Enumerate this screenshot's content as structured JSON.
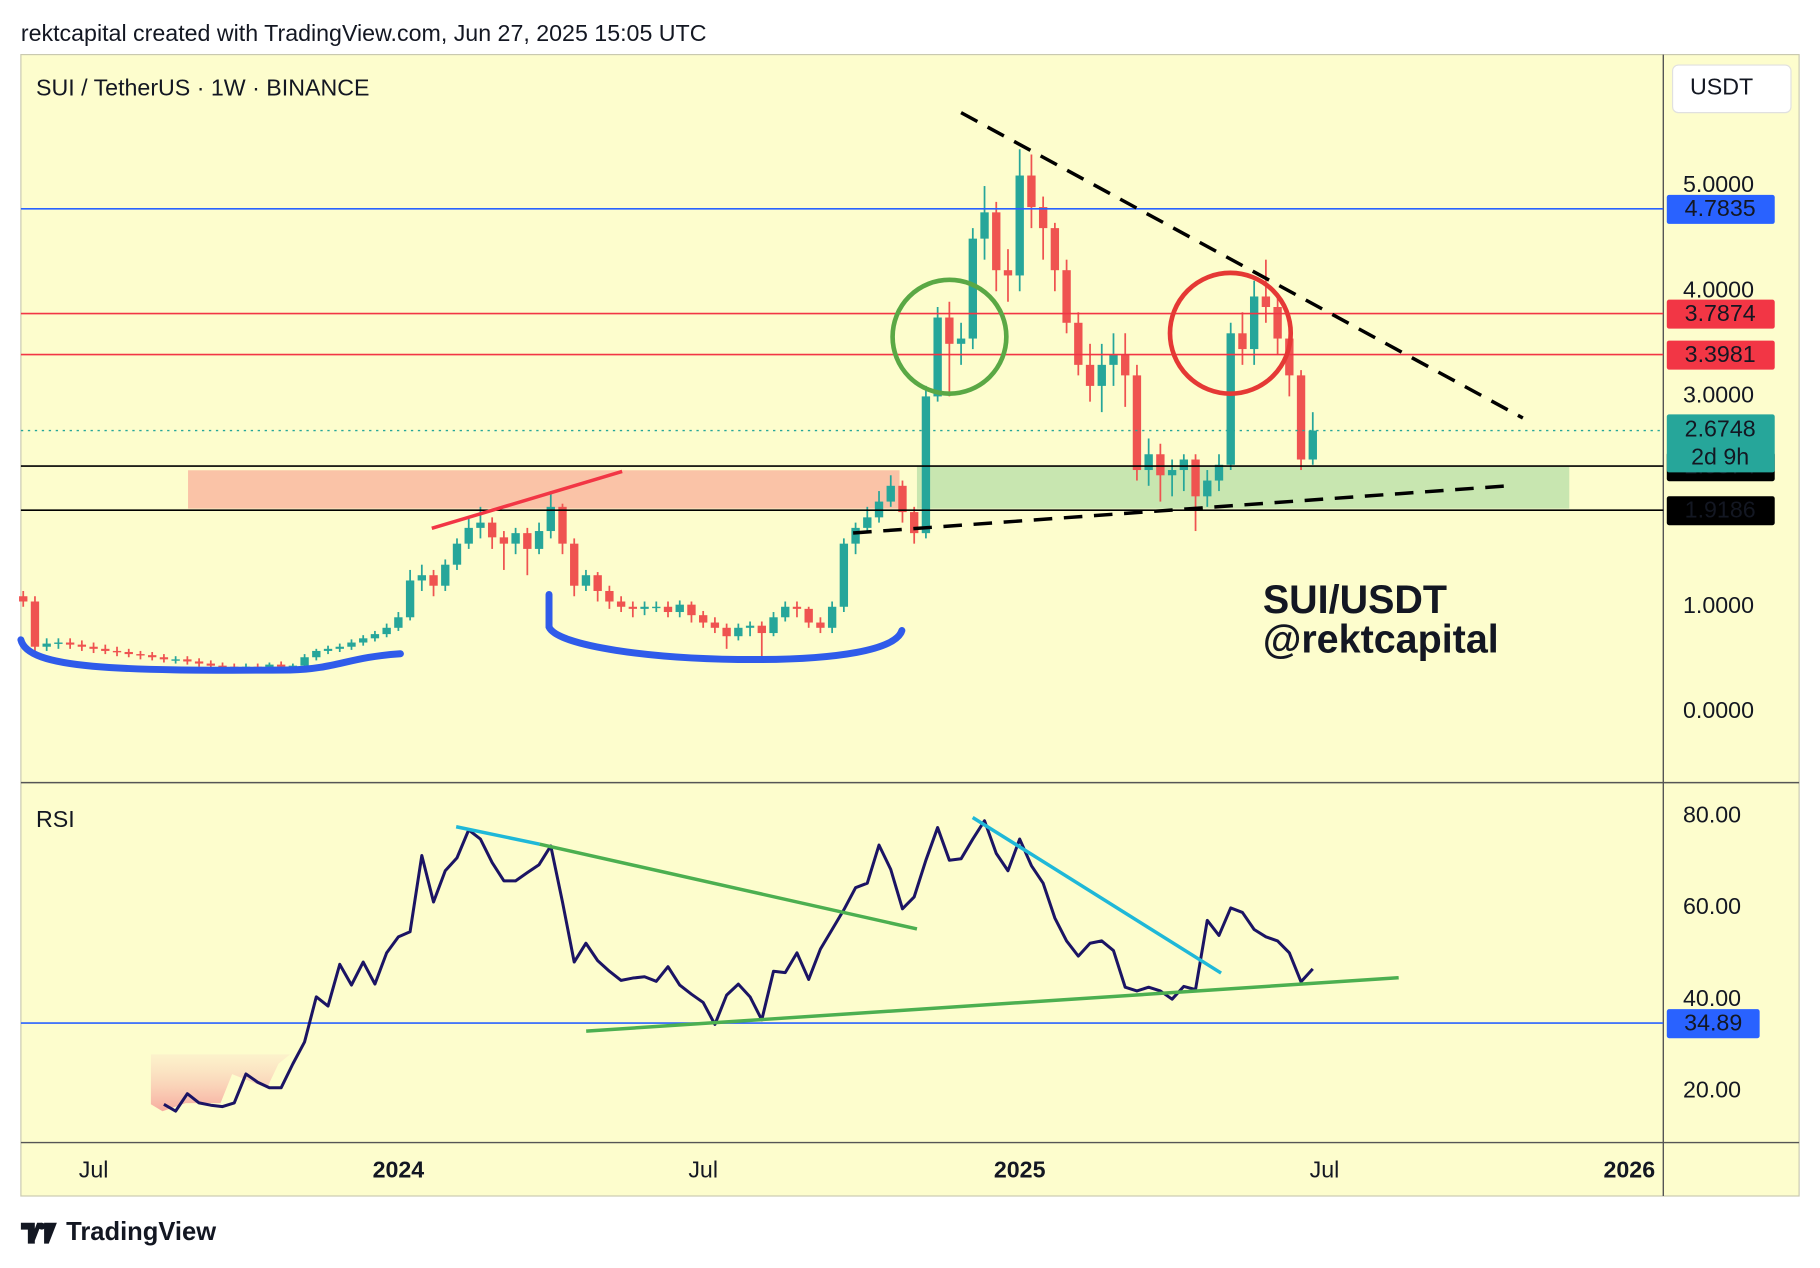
{
  "header": "rektcapital created with TradingView.com, Jun 27, 2025 15:05 UTC",
  "footer": "TradingView",
  "chart_data": {
    "type": "candlestick",
    "title": "SUI / TetherUS · 1W · BINANCE",
    "currency": "USDT",
    "annotations": [
      "SUI/USDT",
      "@rektcapital"
    ],
    "up_color": "#26a69a",
    "down_color": "#ef5350",
    "xlim": [
      -0.2,
      139.9
    ],
    "xticks": [
      {
        "value": 6,
        "label": "Jul"
      },
      {
        "value": 32,
        "label": "2024"
      },
      {
        "value": 58,
        "label": "Jul"
      },
      {
        "value": 85,
        "label": "2025"
      },
      {
        "value": 111,
        "label": "Jul"
      },
      {
        "value": 137,
        "label": "2026"
      }
    ],
    "ylim": [
      -0.65,
      6.25
    ],
    "yticks": [
      {
        "value": 0,
        "label": "0.0000"
      },
      {
        "value": 1,
        "label": "1.0000"
      },
      {
        "value": 3,
        "label": "3.0000"
      },
      {
        "value": 4,
        "label": "4.0000"
      },
      {
        "value": 5,
        "label": "5.0000"
      }
    ],
    "open": [
      1.1,
      1.05,
      0.62,
      0.65,
      0.66,
      0.64,
      0.62,
      0.6,
      0.58,
      0.57,
      0.55,
      0.54,
      0.52,
      0.5,
      0.5,
      0.48,
      0.46,
      0.44,
      0.43,
      0.42,
      0.43,
      0.42,
      0.45,
      0.43,
      0.44,
      0.52,
      0.58,
      0.6,
      0.62,
      0.66,
      0.7,
      0.74,
      0.8,
      0.9,
      1.25,
      1.3,
      1.2,
      1.4,
      1.6,
      1.75,
      1.8,
      1.66,
      1.6,
      1.7,
      1.55,
      1.72,
      1.95,
      1.6,
      1.2,
      1.3,
      1.15,
      1.05,
      1.0,
      0.98,
      1.0,
      1.0,
      0.95,
      1.02,
      0.92,
      0.85,
      0.8,
      0.72,
      0.8,
      0.82,
      0.75,
      0.9,
      1.0,
      0.98,
      0.85,
      0.8,
      1.0,
      1.6,
      1.75,
      1.85,
      2.0,
      2.15,
      1.9,
      1.7,
      3.0,
      3.75,
      3.5,
      3.55,
      4.5,
      4.75,
      4.2,
      4.15,
      5.1,
      4.8,
      4.6,
      4.2,
      3.7,
      3.3,
      3.1,
      3.3,
      3.4,
      3.2,
      2.3,
      2.45,
      2.25,
      2.3,
      2.4,
      2.05,
      2.2,
      2.35,
      3.6,
      3.45,
      3.95,
      3.85,
      3.55,
      3.2,
      2.4
    ],
    "high": [
      1.15,
      1.1,
      0.7,
      0.7,
      0.7,
      0.68,
      0.66,
      0.64,
      0.62,
      0.6,
      0.58,
      0.57,
      0.55,
      0.53,
      0.53,
      0.51,
      0.49,
      0.47,
      0.46,
      0.46,
      0.46,
      0.47,
      0.48,
      0.46,
      0.55,
      0.6,
      0.63,
      0.65,
      0.69,
      0.73,
      0.77,
      0.84,
      0.95,
      1.35,
      1.4,
      1.35,
      1.45,
      1.65,
      1.85,
      1.95,
      1.85,
      1.72,
      1.75,
      1.75,
      1.8,
      2.1,
      1.98,
      1.65,
      1.35,
      1.33,
      1.2,
      1.1,
      1.05,
      1.05,
      1.05,
      1.05,
      1.06,
      1.05,
      0.96,
      0.9,
      0.84,
      0.84,
      0.86,
      0.86,
      0.95,
      1.05,
      1.05,
      1.0,
      0.9,
      1.05,
      1.65,
      1.8,
      1.95,
      2.1,
      2.25,
      2.2,
      1.95,
      3.1,
      3.85,
      3.9,
      3.7,
      4.6,
      5.0,
      4.85,
      4.4,
      5.35,
      5.3,
      4.9,
      4.65,
      4.3,
      3.8,
      3.5,
      3.5,
      3.6,
      3.6,
      3.3,
      2.6,
      2.55,
      2.4,
      2.45,
      2.45,
      2.3,
      2.45,
      3.7,
      3.8,
      4.1,
      4.3,
      3.95,
      3.65,
      3.25,
      2.85
    ],
    "low": [
      1.0,
      0.55,
      0.58,
      0.6,
      0.6,
      0.58,
      0.56,
      0.55,
      0.53,
      0.52,
      0.5,
      0.49,
      0.47,
      0.46,
      0.45,
      0.43,
      0.41,
      0.4,
      0.39,
      0.39,
      0.38,
      0.4,
      0.4,
      0.4,
      0.42,
      0.49,
      0.55,
      0.57,
      0.59,
      0.63,
      0.67,
      0.71,
      0.77,
      0.87,
      1.15,
      1.1,
      1.15,
      1.35,
      1.55,
      1.65,
      1.55,
      1.35,
      1.5,
      1.3,
      1.5,
      1.65,
      1.5,
      1.1,
      1.15,
      1.05,
      0.98,
      0.95,
      0.9,
      0.92,
      0.95,
      0.9,
      0.9,
      0.85,
      0.8,
      0.75,
      0.6,
      0.68,
      0.72,
      0.5,
      0.72,
      0.86,
      0.9,
      0.8,
      0.75,
      0.75,
      0.95,
      1.5,
      1.7,
      1.8,
      1.95,
      1.8,
      1.6,
      1.65,
      2.95,
      3.0,
      3.3,
      3.45,
      4.3,
      4.0,
      3.9,
      4.0,
      4.6,
      4.3,
      4.0,
      3.6,
      3.2,
      2.95,
      2.85,
      3.1,
      2.9,
      2.2,
      2.15,
      2.0,
      2.05,
      2.1,
      1.72,
      1.95,
      2.1,
      2.3,
      3.3,
      3.3,
      3.7,
      3.4,
      3.0,
      2.3,
      2.35
    ],
    "close": [
      1.05,
      0.62,
      0.65,
      0.66,
      0.64,
      0.62,
      0.6,
      0.58,
      0.57,
      0.55,
      0.54,
      0.52,
      0.5,
      0.5,
      0.48,
      0.46,
      0.44,
      0.43,
      0.42,
      0.43,
      0.42,
      0.45,
      0.43,
      0.44,
      0.52,
      0.58,
      0.6,
      0.62,
      0.66,
      0.7,
      0.74,
      0.8,
      0.9,
      1.25,
      1.3,
      1.2,
      1.4,
      1.6,
      1.75,
      1.8,
      1.66,
      1.6,
      1.7,
      1.55,
      1.72,
      1.95,
      1.6,
      1.2,
      1.3,
      1.15,
      1.05,
      1.0,
      0.98,
      1.0,
      1.0,
      0.95,
      1.02,
      0.92,
      0.85,
      0.8,
      0.72,
      0.8,
      0.82,
      0.75,
      0.9,
      1.0,
      0.98,
      0.85,
      0.8,
      1.0,
      1.6,
      1.75,
      1.85,
      2.0,
      2.15,
      1.9,
      1.7,
      3.0,
      3.75,
      3.5,
      3.55,
      4.5,
      4.75,
      4.2,
      4.15,
      5.1,
      4.8,
      4.6,
      4.2,
      3.7,
      3.3,
      3.1,
      3.3,
      3.4,
      3.2,
      2.3,
      2.45,
      2.25,
      2.3,
      2.4,
      2.05,
      2.2,
      2.35,
      3.6,
      3.45,
      3.95,
      3.85,
      3.55,
      3.2,
      2.4,
      2.6748
    ],
    "countdown": "2d 9h",
    "levels": [
      {
        "value": 4.7835,
        "color": "#2962ff"
      },
      {
        "value": 3.7874,
        "color": "#f23645"
      },
      {
        "value": 3.3981,
        "color": "#f23645"
      },
      {
        "value": 2.3374,
        "color": "#000000"
      },
      {
        "value": 1.9186,
        "color": "#000000"
      }
    ],
    "rsi": {
      "name": "RSI",
      "color": "#1b1464",
      "ylim": [
        9.1,
        86.8
      ],
      "yticks": [
        {
          "value": 20,
          "label": "20.00"
        },
        {
          "value": 40,
          "label": "40.00"
        },
        {
          "value": 60,
          "label": "60.00"
        },
        {
          "value": 80,
          "label": "80.00"
        }
      ],
      "level": {
        "value": 34.89,
        "color": "#2962ff"
      },
      "values": [
        null,
        null,
        null,
        null,
        null,
        null,
        null,
        null,
        null,
        null,
        null,
        null,
        17.2,
        15.7,
        19.5,
        17.5,
        17,
        16.7,
        17.5,
        23.8,
        22,
        20.8,
        20.8,
        26,
        30.8,
        40.6,
        38.6,
        47.7,
        43.2,
        48.2,
        43.4,
        50.2,
        53.7,
        54.8,
        71.4,
        61.3,
        68.1,
        70.9,
        77,
        75,
        69.9,
        65.9,
        65.9,
        67.7,
        69.4,
        73.5,
        61.3,
        48.2,
        52.3,
        48.5,
        46.2,
        44.2,
        44.7,
        45,
        44,
        47.2,
        43.2,
        41.2,
        39.4,
        34.6,
        41,
        43.4,
        40.6,
        35.6,
        46.2,
        45.9,
        50.2,
        44.4,
        51,
        55.3,
        59.6,
        64.4,
        65.4,
        73.7,
        68.4,
        59.8,
        62.4,
        70.4,
        77.5,
        70.4,
        70.7,
        75,
        79,
        71.9,
        68.1,
        75,
        69.2,
        65.4,
        57.8,
        52.8,
        49.5,
        52.3,
        52.8,
        50.7,
        42.7,
        41.9,
        42.7,
        41.9,
        40.1,
        42.9,
        42.2,
        57.3,
        54,
        60,
        59,
        55.3,
        53.7,
        52.8,
        50.2,
        43.9,
        46.7
      ]
    }
  }
}
